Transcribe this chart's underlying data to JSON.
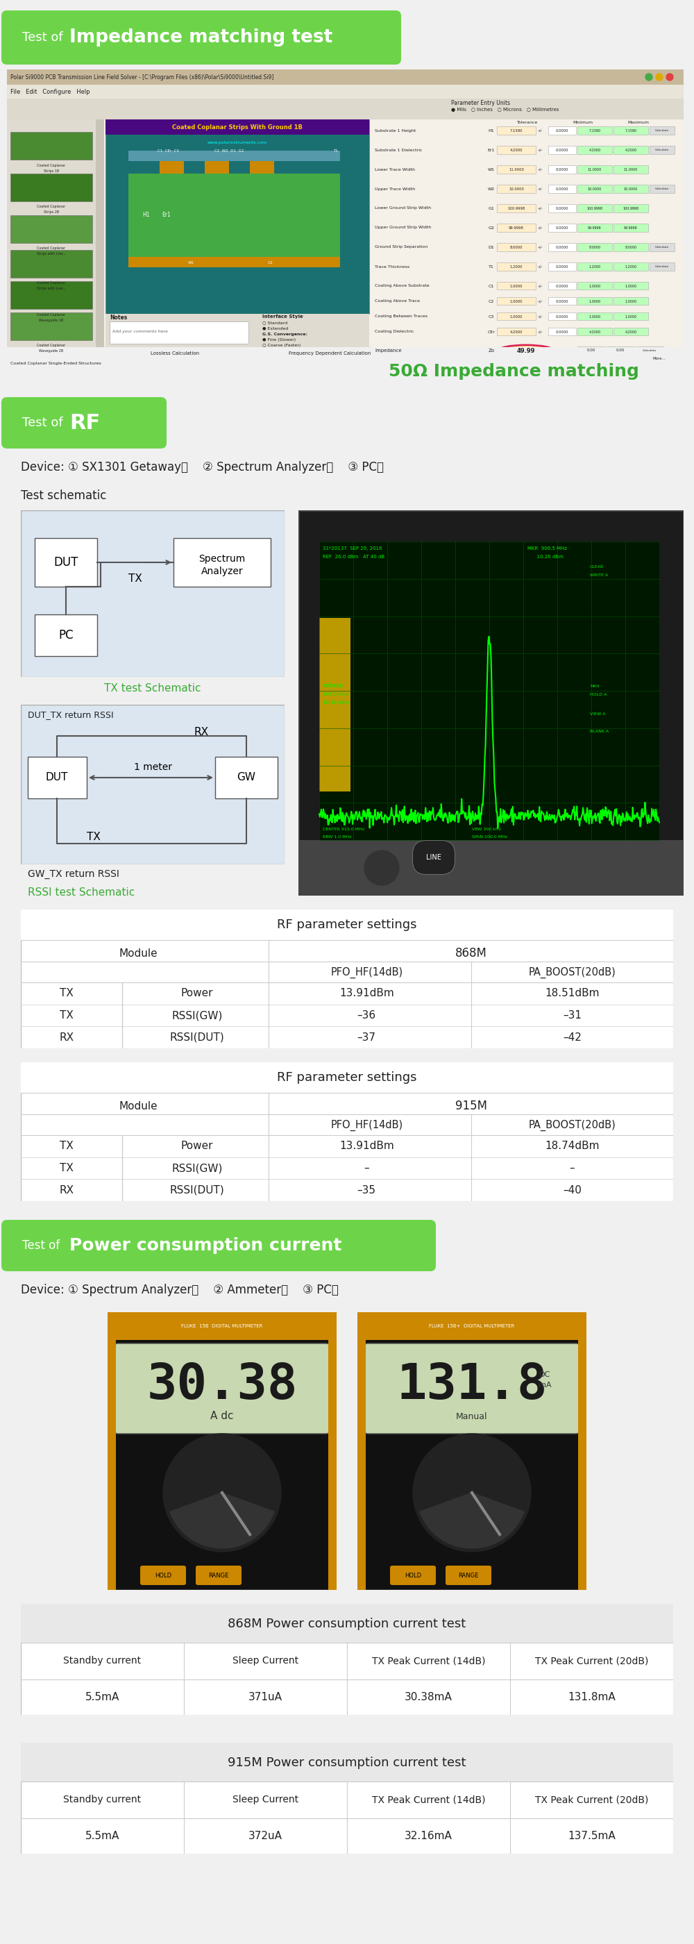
{
  "bg_color": "#f0f0f0",
  "white": "#ffffff",
  "green_label_bg": "#6dd44a",
  "green_text": "#3aaa35",
  "dark_text": "#222222",
  "blue_gray": "#dce6f1",
  "section1_title": "Impedance matching test",
  "section2_title": "RF",
  "section3_title": "Power consumption current",
  "impedance_note": "50Ω Impedance matching",
  "rf_device_text": "Device: ① SX1301 Getaway；    ② Spectrum Analyzer；    ③ PC；",
  "test_schematic_label": "Test schematic",
  "tx_schematic_label": "TX test Schematic",
  "rssi_schematic_label": "RSSI test Schematic",
  "gw_tx_label": "GW_TX return RSSI",
  "dut_tx_label": "DUT_TX return RSSI",
  "rf_table1_title": "RF parameter settings",
  "rf_table1_module": "868M",
  "rf_table1_col1": "PFO_HF(14dB)",
  "rf_table1_col2": "PA_BOOST(20dB)",
  "rf_table2_title": "RF parameter settings",
  "rf_table2_module": "915M",
  "rf_table2_col1": "PFO_HF(14dB)",
  "rf_table2_col2": "PA_BOOST(20dB)",
  "power_device_text": "Device: ① Spectrum Analyzer；    ② Ammeter；    ③ PC；",
  "power_table1_title": "868M Power consumption current test",
  "power_table1_headers": [
    "Standby current",
    "Sleep Current",
    "TX Peak Current (14dB)",
    "TX Peak Current (20dB)"
  ],
  "power_table1_row": [
    "5.5mA",
    "371uA",
    "30.38mA",
    "131.8mA"
  ],
  "power_table2_title": "915M Power consumption current test",
  "power_table2_headers": [
    "Standby current",
    "Sleep Current",
    "TX Peak Current (14dB)",
    "TX Peak Current (20dB)"
  ],
  "power_table2_row": [
    "5.5mA",
    "372uA",
    "32.16mA",
    "137.5mA"
  ],
  "multimeter1_val": "30.38",
  "multimeter2_val": "131.8",
  "row_868": [
    [
      "TX",
      "Power",
      "13.91dBm",
      "18.51dBm"
    ],
    [
      "TX",
      "RSSI(GW)",
      "–36",
      "–31"
    ],
    [
      "RX",
      "RSSI(DUT)",
      "–37",
      "–42"
    ]
  ],
  "row_915": [
    [
      "TX",
      "Power",
      "13.91dBm",
      "18.74dBm"
    ],
    [
      "TX",
      "RSSI(GW)",
      "–",
      "–"
    ],
    [
      "RX",
      "RSSI(DUT)",
      "–35",
      "–40"
    ]
  ]
}
